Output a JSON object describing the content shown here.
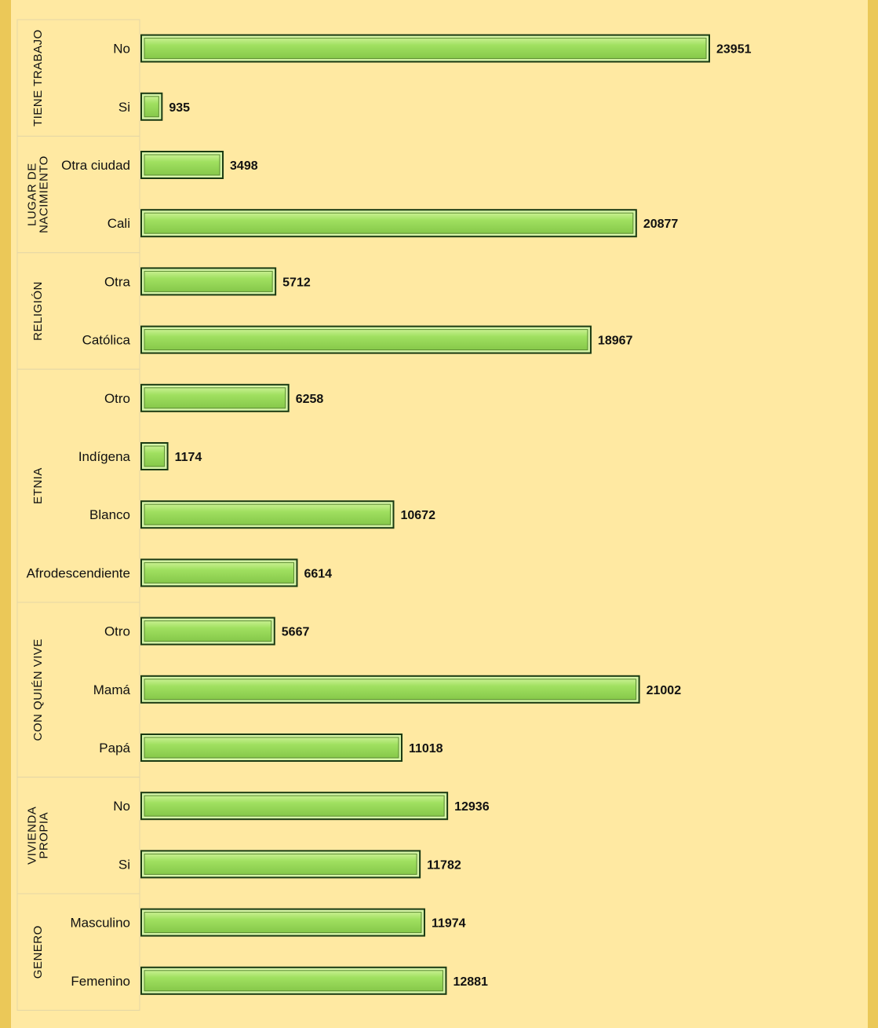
{
  "chart_data": {
    "type": "bar",
    "orientation": "horizontal",
    "title": "",
    "xlabel": "",
    "ylabel": "",
    "xlim": [
      0,
      30000
    ],
    "grid": false,
    "legend": "none",
    "colors": {
      "bar_fill": "#a0e060",
      "bar_border": "#1a3a12",
      "background": "#ffe9a2",
      "frame": "#ebc858"
    },
    "groups": [
      {
        "name": "TIENE TRABAJO",
        "lines": [
          "TIENE TRABAJO"
        ],
        "bars": [
          {
            "label": "No",
            "value": 23951
          },
          {
            "label": "Si",
            "value": 935
          }
        ]
      },
      {
        "name": "LUGAR DE NACIMIENTO",
        "lines": [
          "LUGAR DE",
          "NACIMIENTO"
        ],
        "bars": [
          {
            "label": "Otra ciudad",
            "value": 3498
          },
          {
            "label": "Cali",
            "value": 20877
          }
        ]
      },
      {
        "name": "RELIGIÓN",
        "lines": [
          "RELIGIÓN"
        ],
        "bars": [
          {
            "label": "Otra",
            "value": 5712
          },
          {
            "label": "Católica",
            "value": 18967
          }
        ]
      },
      {
        "name": "ETNIA",
        "lines": [
          "ETNIA"
        ],
        "bars": [
          {
            "label": "Otro",
            "value": 6258
          },
          {
            "label": "Indígena",
            "value": 1174
          },
          {
            "label": "Blanco",
            "value": 10672
          },
          {
            "label": "Afrodescendiente",
            "value": 6614
          }
        ]
      },
      {
        "name": "CON QUIÉN VIVE",
        "lines": [
          "CON QUIÉN VIVE"
        ],
        "bars": [
          {
            "label": "Otro",
            "value": 5667
          },
          {
            "label": "Mamá",
            "value": 21002
          },
          {
            "label": "Papá",
            "value": 11018
          }
        ]
      },
      {
        "name": "VIVIENDA PROPIA",
        "lines": [
          "VIVIENDA",
          "PROPIA"
        ],
        "bars": [
          {
            "label": "No",
            "value": 12936
          },
          {
            "label": "Si",
            "value": 11782
          }
        ]
      },
      {
        "name": "GENERO",
        "lines": [
          "GENERO"
        ],
        "bars": [
          {
            "label": "Masculino",
            "value": 11974
          },
          {
            "label": "Femenino",
            "value": 12881
          }
        ]
      }
    ]
  }
}
